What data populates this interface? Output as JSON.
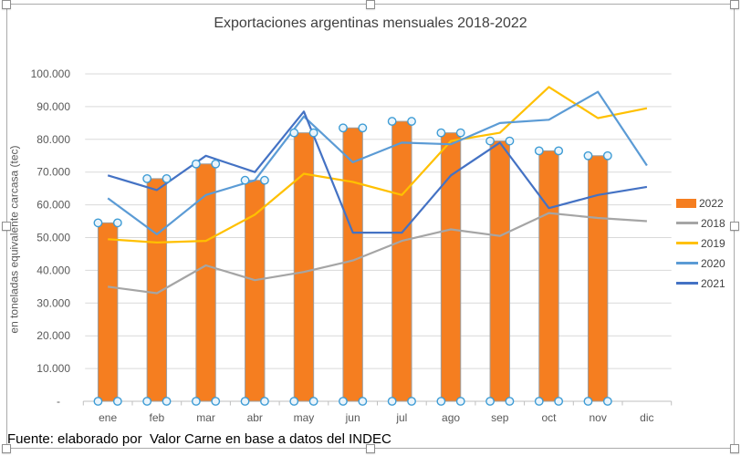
{
  "chart_title": "Exportaciones argentinas mensuales 2018-2022",
  "footer": "Fuente: elaborado por  Valor Carne en base a datos del INDEC",
  "y_axis": {
    "title": "en toneladas equivalente carcasa (tec)",
    "ticks": [
      {
        "label": "100.000",
        "value": 100000
      },
      {
        "label": "90.000",
        "value": 90000
      },
      {
        "label": "80.000",
        "value": 80000
      },
      {
        "label": "70.000",
        "value": 70000
      },
      {
        "label": "60.000",
        "value": 60000
      },
      {
        "label": "50.000",
        "value": 50000
      },
      {
        "label": "40.000",
        "value": 40000
      },
      {
        "label": "30.000",
        "value": 30000
      },
      {
        "label": "20.000",
        "value": 20000
      },
      {
        "label": "10.000",
        "value": 10000
      },
      {
        "label": "-",
        "value": 0
      }
    ]
  },
  "legend": [
    {
      "label": "2022",
      "color": "#F57E20",
      "type": "bar"
    },
    {
      "label": "2018",
      "color": "#A5A5A5",
      "type": "line"
    },
    {
      "label": "2019",
      "color": "#FFC000",
      "type": "line"
    },
    {
      "label": "2020",
      "color": "#5B9BD5",
      "type": "line"
    },
    {
      "label": "2021",
      "color": "#4472C4",
      "type": "line"
    }
  ],
  "colors": {
    "gridline": "#D9D9D9",
    "axis": "#BFBFBF",
    "axis_text": "#595959",
    "bar_outline": "#9E9E9E",
    "point_handle_stroke": "#3E9CD5",
    "point_handle_fill": "#EAF4FB"
  },
  "chart_data": {
    "type": "combo",
    "categories": [
      "ene",
      "feb",
      "mar",
      "abr",
      "may",
      "jun",
      "jul",
      "ago",
      "sep",
      "oct",
      "nov",
      "dic"
    ],
    "ylim": [
      0,
      100000
    ],
    "y_step": 10000,
    "grid": true,
    "legend_position": "right",
    "series": [
      {
        "name": "2022",
        "type": "bar",
        "color": "#F57E20",
        "selected": true,
        "values": [
          54500,
          68000,
          72500,
          67500,
          82000,
          83500,
          85500,
          82000,
          79500,
          76500,
          75000,
          null
        ]
      },
      {
        "name": "2018",
        "type": "line",
        "color": "#A5A5A5",
        "values": [
          35000,
          33000,
          41500,
          37000,
          39500,
          43000,
          49000,
          52500,
          50500,
          57500,
          56000,
          55000
        ]
      },
      {
        "name": "2019",
        "type": "line",
        "color": "#FFC000",
        "values": [
          49500,
          48500,
          49000,
          57000,
          69500,
          67000,
          63000,
          79500,
          82000,
          96000,
          86500,
          89500
        ]
      },
      {
        "name": "2020",
        "type": "line",
        "color": "#5B9BD5",
        "values": [
          62000,
          51000,
          63000,
          67500,
          87000,
          73000,
          79000,
          78500,
          85000,
          86000,
          94500,
          72000
        ]
      },
      {
        "name": "2021",
        "type": "line",
        "color": "#4472C4",
        "values": [
          69000,
          64500,
          75000,
          70000,
          88500,
          51500,
          51500,
          69000,
          79000,
          59000,
          63000,
          65500
        ]
      }
    ]
  }
}
